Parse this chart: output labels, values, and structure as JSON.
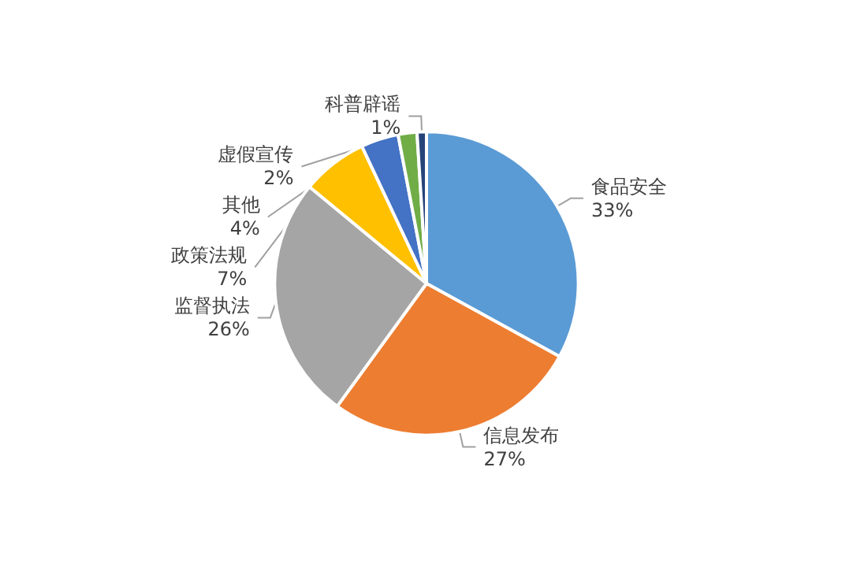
{
  "chart_data": {
    "type": "pie",
    "categories": [
      "食品安全",
      "信息发布",
      "监督执法",
      "政策法规",
      "其他",
      "虚假宣传",
      "科普辟谣"
    ],
    "values": [
      33,
      27,
      26,
      7,
      4,
      2,
      1
    ],
    "value_labels": [
      "33%",
      "27%",
      "26%",
      "7%",
      "4%",
      "2%",
      "1%"
    ],
    "colors": [
      "#5b9bd5",
      "#ed7d31",
      "#a5a5a5",
      "#ffc000",
      "#4472c4",
      "#70ad47",
      "#264478"
    ],
    "legend": false
  }
}
